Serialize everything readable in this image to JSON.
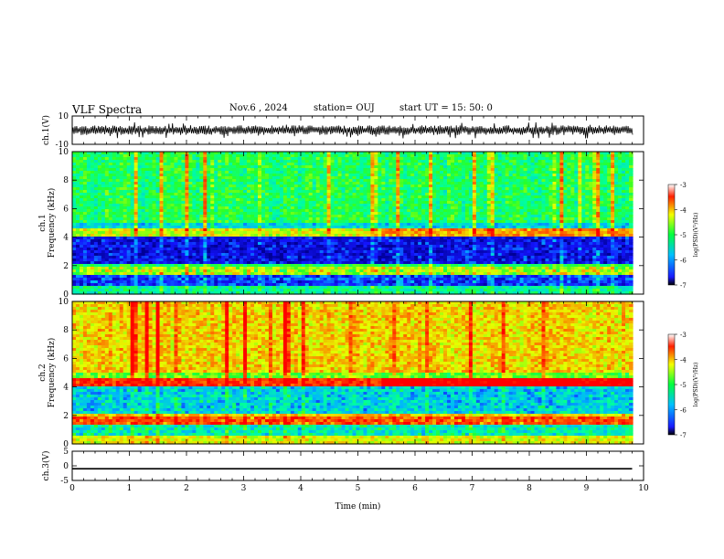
{
  "header": {
    "title": "VLF Spectra",
    "date": "Nov.6  , 2024",
    "station": "station= OUJ",
    "start": "start  UT  =  15: 50: 0"
  },
  "colorbar": {
    "label": "log(PSD)(V²/Hz)",
    "ticks": [
      "-3",
      "-4",
      "-5",
      "-6",
      "-7"
    ],
    "range": [
      -7,
      -3
    ]
  },
  "chart_data": [
    {
      "type": "line",
      "panel": "ch1-waveform",
      "ylabel": "ch.1(V)",
      "ylim": [
        -10,
        10
      ],
      "y_ticks": [
        "10",
        "-10"
      ],
      "trace": "noisy waveform around 0 V, roughly ±3 V envelope"
    },
    {
      "type": "heatmap",
      "panel": "ch1-spectrogram",
      "ylabel": "ch.1\nFrequency  (kHz)",
      "ylim": [
        0,
        10
      ],
      "y_ticks": [
        "0",
        "2",
        "4",
        "6",
        "8",
        "10"
      ],
      "value_range": [
        -7,
        -3
      ],
      "mean_level": -4.9
    },
    {
      "type": "heatmap",
      "panel": "ch2-spectrogram",
      "ylabel": "ch.2\nFrequency  (kHz)",
      "ylim": [
        0,
        10
      ],
      "y_ticks": [
        "0",
        "2",
        "4",
        "6",
        "8",
        "10"
      ],
      "value_range": [
        -7,
        -3
      ],
      "mean_level": -4.2
    },
    {
      "type": "line",
      "panel": "ch3-waveform",
      "ylabel": "ch.3(V)",
      "ylim": [
        -5,
        5
      ],
      "y_ticks": [
        "5",
        "0",
        "-5"
      ],
      "x": [
        0,
        9.8
      ],
      "y": [
        -1,
        -1
      ]
    }
  ],
  "x_axis": {
    "label": "Time  (min)",
    "range": [
      0,
      10
    ],
    "ticks": [
      "0",
      "1",
      "2",
      "3",
      "4",
      "5",
      "6",
      "7",
      "8",
      "9",
      "10"
    ]
  }
}
